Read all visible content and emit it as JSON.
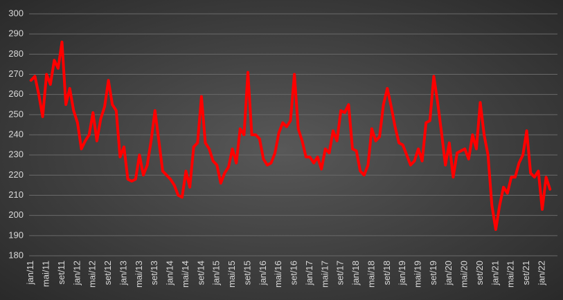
{
  "chart_data": {
    "type": "line",
    "categories": [
      "jan/11",
      null,
      null,
      null,
      "mai/11",
      null,
      null,
      null,
      "set/11",
      null,
      null,
      null,
      "jan/12",
      null,
      null,
      null,
      "mai/12",
      null,
      null,
      null,
      "set/12",
      null,
      null,
      null,
      "jan/13",
      null,
      null,
      null,
      "mai/13",
      null,
      null,
      null,
      "set/13",
      null,
      null,
      null,
      "jan/14",
      null,
      null,
      null,
      "mai/14",
      null,
      null,
      null,
      "set/14",
      null,
      null,
      null,
      "jan/15",
      null,
      null,
      null,
      "mai/15",
      null,
      null,
      null,
      "set/15",
      null,
      null,
      null,
      "jan/16",
      null,
      null,
      null,
      "mai/16",
      null,
      null,
      null,
      "set/16",
      null,
      null,
      null,
      "jan/17",
      null,
      null,
      null,
      "mai/17",
      null,
      null,
      null,
      "set/17",
      null,
      null,
      null,
      "jan/18",
      null,
      null,
      null,
      "mai/18",
      null,
      null,
      null,
      "set/18",
      null,
      null,
      null,
      "jan/19",
      null,
      null,
      null,
      "mai/19",
      null,
      null,
      null,
      "set/19",
      null,
      null,
      null,
      "jan/20",
      null,
      null,
      null,
      "mai/20",
      null,
      null,
      null,
      "set/20",
      null,
      null,
      null,
      "jan/21",
      null,
      null,
      null,
      "mai/21",
      null,
      null,
      null,
      "set/21",
      null,
      null,
      null,
      "jan/22",
      null,
      null
    ],
    "values": [
      267,
      269,
      260,
      249,
      270,
      265,
      277,
      273,
      286,
      255,
      263,
      252,
      246,
      233,
      237,
      240,
      251,
      237,
      248,
      254,
      267,
      255,
      252,
      229,
      234,
      218,
      217,
      218,
      230,
      220,
      225,
      237,
      252,
      237,
      222,
      220,
      218,
      215,
      210,
      209,
      222,
      214,
      234,
      236,
      259,
      236,
      233,
      227,
      225,
      216,
      221,
      224,
      233,
      226,
      243,
      240,
      271,
      240,
      240,
      238,
      228,
      225,
      226,
      231,
      241,
      246,
      244,
      247,
      270,
      243,
      237,
      229,
      229,
      226,
      229,
      223,
      233,
      231,
      242,
      237,
      252,
      251,
      255,
      233,
      232,
      222,
      220,
      225,
      243,
      237,
      239,
      255,
      263,
      254,
      244,
      236,
      235,
      230,
      225,
      227,
      233,
      227,
      246,
      247,
      269,
      256,
      241,
      225,
      236,
      219,
      231,
      232,
      233,
      228,
      240,
      233,
      256,
      240,
      230,
      205,
      193,
      205,
      214,
      211,
      219,
      219,
      226,
      230,
      242,
      221,
      219,
      222,
      203,
      219,
      213
    ],
    "color": "#ff0000",
    "ylim": [
      180,
      300
    ],
    "yticks": [
      180,
      190,
      200,
      210,
      220,
      230,
      240,
      250,
      260,
      270,
      280,
      290,
      300
    ],
    "grid": true
  }
}
